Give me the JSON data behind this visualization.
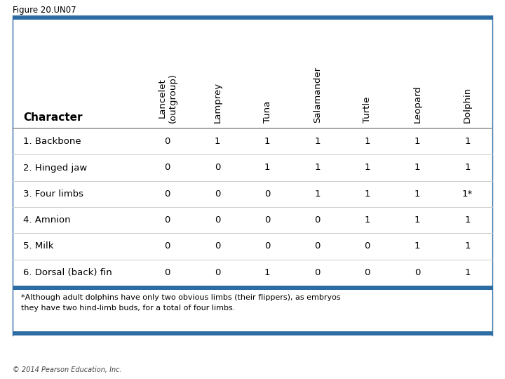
{
  "figure_label": "Figure 20.UN07",
  "copyright": "© 2014 Pearson Education, Inc.",
  "col_headers": [
    "Lancelet\n(outgroup)",
    "Lamprey",
    "Tuna",
    "Salamander",
    "Turtle",
    "Leopard",
    "Dolphin"
  ],
  "char_header": "Character",
  "rows": [
    [
      "1. Backbone",
      "0",
      "1",
      "1",
      "1",
      "1",
      "1",
      "1"
    ],
    [
      "2. Hinged jaw",
      "0",
      "0",
      "1",
      "1",
      "1",
      "1",
      "1"
    ],
    [
      "3. Four limbs",
      "0",
      "0",
      "0",
      "1",
      "1",
      "1",
      "1*"
    ],
    [
      "4. Amnion",
      "0",
      "0",
      "0",
      "0",
      "1",
      "1",
      "1"
    ],
    [
      "5. Milk",
      "0",
      "0",
      "0",
      "0",
      "0",
      "1",
      "1"
    ],
    [
      "6. Dorsal (back) fin",
      "0",
      "0",
      "1",
      "0",
      "0",
      "0",
      "1"
    ]
  ],
  "footnote": "*Although adult dolphins have only two obvious limbs (their flippers), as embryos\nthey have two hind-limb buds, for a total of four limbs.",
  "border_color": "#2E6DA4",
  "border_lw": 5,
  "sep_color": "#999999",
  "row_sep_color": "#cccccc",
  "bg_color": "#FFFFFF",
  "title_fontsize": 8.5,
  "header_fontsize": 9.5,
  "cell_fontsize": 9.5,
  "footnote_fontsize": 8,
  "copyright_fontsize": 7
}
